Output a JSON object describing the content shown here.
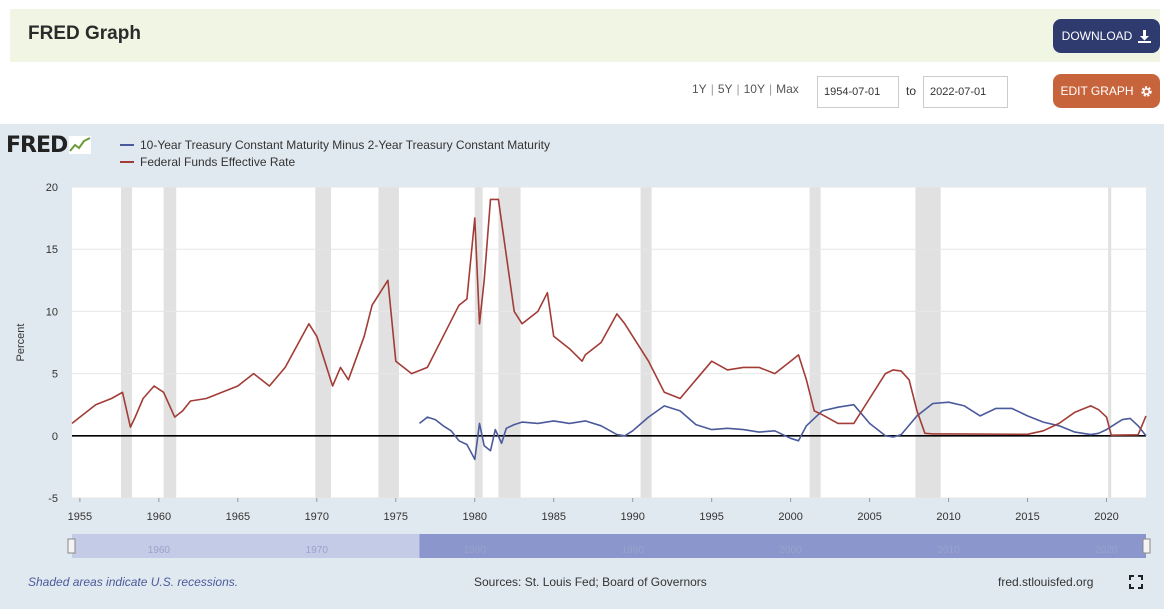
{
  "header": {
    "title": "FRED Graph",
    "download_label": "DOWNLOAD",
    "download_icon": "download-icon"
  },
  "controls": {
    "range_options": [
      "1Y",
      "5Y",
      "10Y",
      "Max"
    ],
    "start_date": "1954-07-01",
    "to_label": "to",
    "end_date": "2022-07-01",
    "edit_label": "EDIT GRAPH",
    "edit_icon": "gear-icon"
  },
  "footer": {
    "recession_note": "Shaded areas indicate U.S. recessions.",
    "sources": "Sources: St. Louis Fed; Board of Governors",
    "site": "fred.stlouisfed.org"
  },
  "colors": {
    "series1": "#4b5a9c",
    "series2": "#a23c36",
    "recession": "#e1e1e1",
    "navigator": "#8a96cc"
  },
  "chart_data": {
    "type": "line",
    "title": "",
    "xlabel": "",
    "ylabel": "Percent",
    "xlim": [
      1954.5,
      2022.5
    ],
    "ylim": [
      -5,
      20
    ],
    "yticks": [
      -5,
      0,
      5,
      10,
      15,
      20
    ],
    "xticks": [
      1955,
      1960,
      1965,
      1970,
      1975,
      1980,
      1985,
      1990,
      1995,
      2000,
      2005,
      2010,
      2015,
      2020
    ],
    "navigator_ticks": [
      1960,
      1970,
      1980,
      1990,
      2000,
      2010,
      2020
    ],
    "recessions": [
      [
        1957.6,
        1958.3
      ],
      [
        1960.3,
        1961.1
      ],
      [
        1969.9,
        1970.9
      ],
      [
        1973.9,
        1975.2
      ],
      [
        1980.0,
        1980.5
      ],
      [
        1981.5,
        1982.9
      ],
      [
        1990.5,
        1991.2
      ],
      [
        2001.2,
        2001.9
      ],
      [
        2007.9,
        2009.5
      ],
      [
        2020.1,
        2020.3
      ]
    ],
    "series": [
      {
        "name": "10-Year Treasury Constant Maturity Minus 2-Year Treasury Constant Maturity",
        "x": [
          1976.5,
          1977,
          1977.5,
          1978,
          1978.5,
          1979,
          1979.5,
          1980,
          1980.3,
          1980.6,
          1981,
          1981.3,
          1981.7,
          1982,
          1982.5,
          1983,
          1984,
          1985,
          1986,
          1987,
          1988,
          1989,
          1989.5,
          1990,
          1991,
          1992,
          1993,
          1994,
          1995,
          1996,
          1997,
          1998,
          1999,
          2000,
          2000.5,
          2001,
          2002,
          2003,
          2004,
          2005,
          2006,
          2006.5,
          2007,
          2008,
          2009,
          2010,
          2011,
          2012,
          2013,
          2014,
          2015,
          2016,
          2017,
          2018,
          2019,
          2019.5,
          2020,
          2021,
          2021.5,
          2022,
          2022.5
        ],
        "values": [
          1.0,
          1.5,
          1.3,
          0.8,
          0.4,
          -0.4,
          -0.7,
          -1.9,
          1.0,
          -0.8,
          -1.2,
          0.5,
          -0.6,
          0.6,
          0.9,
          1.1,
          1.0,
          1.2,
          1.0,
          1.2,
          0.8,
          0.1,
          0.0,
          0.4,
          1.5,
          2.4,
          2.0,
          0.9,
          0.5,
          0.6,
          0.5,
          0.3,
          0.4,
          -0.2,
          -0.4,
          0.8,
          2.0,
          2.3,
          2.5,
          1.0,
          0.0,
          -0.1,
          0.1,
          1.6,
          2.6,
          2.7,
          2.4,
          1.6,
          2.2,
          2.2,
          1.6,
          1.1,
          0.8,
          0.3,
          0.1,
          0.2,
          0.5,
          1.3,
          1.4,
          0.8,
          0.0
        ]
      },
      {
        "name": "Federal Funds Effective Rate",
        "x": [
          1954.5,
          1955,
          1956,
          1957,
          1957.7,
          1958.2,
          1958.5,
          1959,
          1959.7,
          1960.3,
          1961,
          1961.5,
          1962,
          1963,
          1964,
          1965,
          1966,
          1967,
          1968,
          1969.5,
          1970,
          1971,
          1971.5,
          1972,
          1973,
          1973.5,
          1974.5,
          1975,
          1976,
          1977,
          1978,
          1979,
          1979.5,
          1980,
          1980.3,
          1980.6,
          1981,
          1981.5,
          1982,
          1982.5,
          1983,
          1984,
          1984.6,
          1985,
          1986,
          1986.8,
          1987,
          1988,
          1989,
          1989.5,
          1990,
          1991,
          1992,
          1993,
          1994,
          1995,
          1996,
          1997,
          1998,
          1999,
          2000,
          2000.5,
          2001,
          2001.5,
          2002,
          2003,
          2004,
          2005,
          2006,
          2006.5,
          2007,
          2007.5,
          2008,
          2008.5,
          2009,
          2010,
          2015,
          2016,
          2017,
          2018,
          2019,
          2019.5,
          2020,
          2020.3,
          2022,
          2022.5
        ],
        "values": [
          1.0,
          1.5,
          2.5,
          3.0,
          3.5,
          0.7,
          1.5,
          3.0,
          4.0,
          3.5,
          1.5,
          2.0,
          2.8,
          3.0,
          3.5,
          4.0,
          5.0,
          4.0,
          5.5,
          9.0,
          8.0,
          4.0,
          5.5,
          4.5,
          8.0,
          10.5,
          12.5,
          6.0,
          5.0,
          5.5,
          8.0,
          10.5,
          11.0,
          17.5,
          9.0,
          12.5,
          19.0,
          19.0,
          14.5,
          10.0,
          9.0,
          10.0,
          11.5,
          8.0,
          7.0,
          6.0,
          6.5,
          7.5,
          9.8,
          9.0,
          8.0,
          6.0,
          3.5,
          3.0,
          4.5,
          6.0,
          5.3,
          5.5,
          5.5,
          5.0,
          6.0,
          6.5,
          4.5,
          2.0,
          1.7,
          1.0,
          1.0,
          3.0,
          5.0,
          5.3,
          5.2,
          4.5,
          2.0,
          0.2,
          0.15,
          0.15,
          0.12,
          0.4,
          1.0,
          1.9,
          2.4,
          2.1,
          1.5,
          0.05,
          0.08,
          1.6
        ]
      }
    ]
  }
}
